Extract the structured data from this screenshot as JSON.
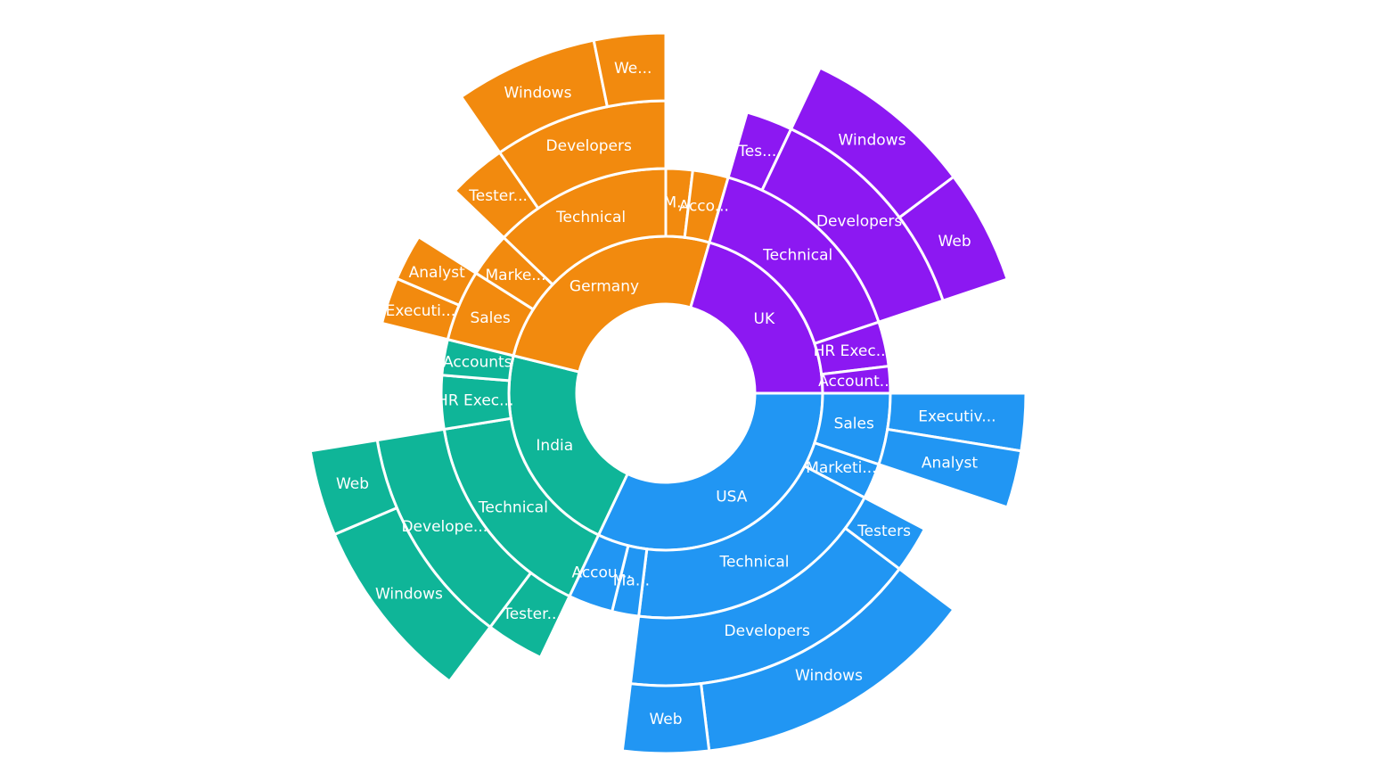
{
  "chart_data": {
    "type": "sunburst",
    "title": "",
    "colors": {
      "USA": "#2196F3",
      "India": "#0FB598",
      "Germany": "#F28A0E",
      "UK": "#8C18F2"
    },
    "nodes": [
      {
        "name": "USA",
        "label": "USA",
        "value": 50,
        "children": [
          {
            "name": "Sales",
            "label": "Sales",
            "value": 8,
            "children": [
              {
                "name": "Executive",
                "label": "Executiv...",
                "value": 4,
                "depth_extent": 2
              },
              {
                "name": "Analyst",
                "label": "Analyst",
                "value": 4,
                "depth_extent": 2
              }
            ]
          },
          {
            "name": "Marketing",
            "label": "Marketi...",
            "value": 4,
            "depth_extent": 1
          },
          {
            "name": "Technical",
            "label": "Technical",
            "value": 30,
            "children": [
              {
                "name": "Testers",
                "label": "Testers",
                "value": 4,
                "depth_extent": 1
              },
              {
                "name": "Developers",
                "label": "Developers",
                "value": 26,
                "children": [
                  {
                    "name": "Windows",
                    "label": "Windows",
                    "value": 20,
                    "depth_extent": 2
                  },
                  {
                    "name": "Web",
                    "label": "Web",
                    "value": 6,
                    "depth_extent": 2
                  }
                ]
              }
            ]
          },
          {
            "name": "Management",
            "label": "Ma...",
            "value": 3,
            "depth_extent": 1
          },
          {
            "name": "Accounts",
            "label": "Accou...",
            "value": 5,
            "depth_extent": 1
          }
        ]
      },
      {
        "name": "India",
        "label": "India",
        "value": 34,
        "children": [
          {
            "name": "Technical",
            "label": "Technical",
            "value": 24,
            "children": [
              {
                "name": "Testers",
                "label": "Tester...",
                "value": 5,
                "depth_extent": 1
              },
              {
                "name": "Developers",
                "label": "Develope...",
                "value": 19,
                "children": [
                  {
                    "name": "Windows",
                    "label": "Windows",
                    "value": 13,
                    "depth_extent": 1
                  },
                  {
                    "name": "Web",
                    "label": "Web",
                    "value": 6,
                    "depth_extent": 1
                  }
                ]
              }
            ]
          },
          {
            "name": "HR Executives",
            "label": "HR Exec...",
            "value": 6,
            "depth_extent": 1
          },
          {
            "name": "Accounts",
            "label": "Accounts",
            "value": 4,
            "depth_extent": 1
          }
        ]
      },
      {
        "name": "Germany",
        "label": "Germany",
        "value": 40,
        "children": [
          {
            "name": "Sales",
            "label": "Sales",
            "value": 8,
            "children": [
              {
                "name": "Executive",
                "label": "Executi...",
                "value": 4,
                "depth_extent": 1
              },
              {
                "name": "Analyst",
                "label": "Analyst",
                "value": 4,
                "depth_extent": 1
              }
            ]
          },
          {
            "name": "Marketing",
            "label": "Marke...",
            "value": 5,
            "depth_extent": 1
          },
          {
            "name": "Technical",
            "label": "Technical",
            "value": 20,
            "children": [
              {
                "name": "Testers",
                "label": "Tester...",
                "value": 5,
                "depth_extent": 1
              },
              {
                "name": "Developers",
                "label": "Developers",
                "value": 15,
                "children": [
                  {
                    "name": "Windows",
                    "label": "Windows",
                    "value": 10,
                    "depth_extent": 1
                  },
                  {
                    "name": "Web",
                    "label": "We...",
                    "value": 5,
                    "depth_extent": 1
                  }
                ]
              }
            ]
          },
          {
            "name": "Management",
            "label": "M...",
            "value": 3,
            "depth_extent": 1
          },
          {
            "name": "Accounts",
            "label": "Acco...",
            "value": 4,
            "depth_extent": 1
          }
        ]
      },
      {
        "name": "UK",
        "label": "UK",
        "value": 32,
        "children": [
          {
            "name": "Technical",
            "label": "Technical",
            "value": 24,
            "children": [
              {
                "name": "Testers",
                "label": "Tes...",
                "value": 4,
                "depth_extent": 1
              },
              {
                "name": "Developers",
                "label": "Developers",
                "value": 20,
                "children": [
                  {
                    "name": "Windows",
                    "label": "Windows",
                    "value": 12,
                    "depth_extent": 2
                  },
                  {
                    "name": "Web",
                    "label": "Web",
                    "value": 8,
                    "depth_extent": 2
                  }
                ]
              }
            ]
          },
          {
            "name": "HR Executives",
            "label": "HR Exec...",
            "value": 5,
            "depth_extent": 1
          },
          {
            "name": "Accounts",
            "label": "Account...",
            "value": 3,
            "depth_extent": 1
          }
        ]
      }
    ]
  }
}
